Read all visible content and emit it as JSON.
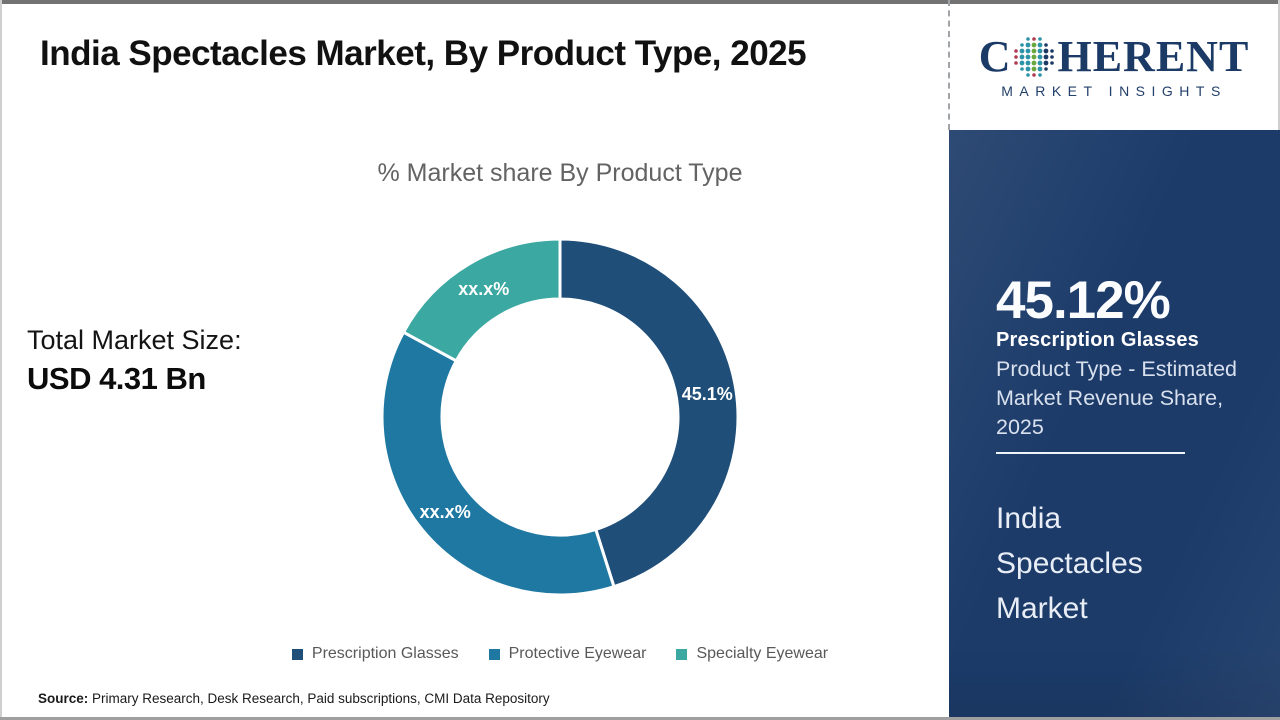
{
  "header": {
    "title": "India Spectacles Market, By Product Type, 2025"
  },
  "logo": {
    "brand_start": "C",
    "brand_end": "HERENT",
    "subtitle": "MARKET INSIGHTS",
    "brand_color": "#1b3a66"
  },
  "stats": {
    "total_label": "Total Market Size:",
    "total_value": "USD 4.31 Bn"
  },
  "chart_data": {
    "type": "pie",
    "subtype": "donut",
    "title": "% Market share By Product Type",
    "start_angle_deg": 0,
    "direction": "clockwise",
    "inner_radius_ratio": 0.663,
    "legend_position": "bottom",
    "segments": [
      {
        "name": "Prescription Glasses",
        "value": 45.1,
        "label": "45.1%",
        "color": "#1f4e79"
      },
      {
        "name": "Protective Eyewear",
        "value": 37.8,
        "label": "xx.x%",
        "color": "#1e78a2"
      },
      {
        "name": "Specialty Eyewear",
        "value": 17.1,
        "label": "xx.x%",
        "color": "#3ba8a2"
      }
    ]
  },
  "sidebar": {
    "highlight_value": "45.12%",
    "highlight_segment": "Prescription Glasses",
    "highlight_desc": "Product Type - Estimated Market Revenue Share, 2025",
    "report_name": "India Spectacles Market",
    "panel_color": "#1c3b69"
  },
  "source": {
    "label": "Source:",
    "text": " Primary Research, Desk Research, Paid subscriptions, CMI Data Repository"
  }
}
